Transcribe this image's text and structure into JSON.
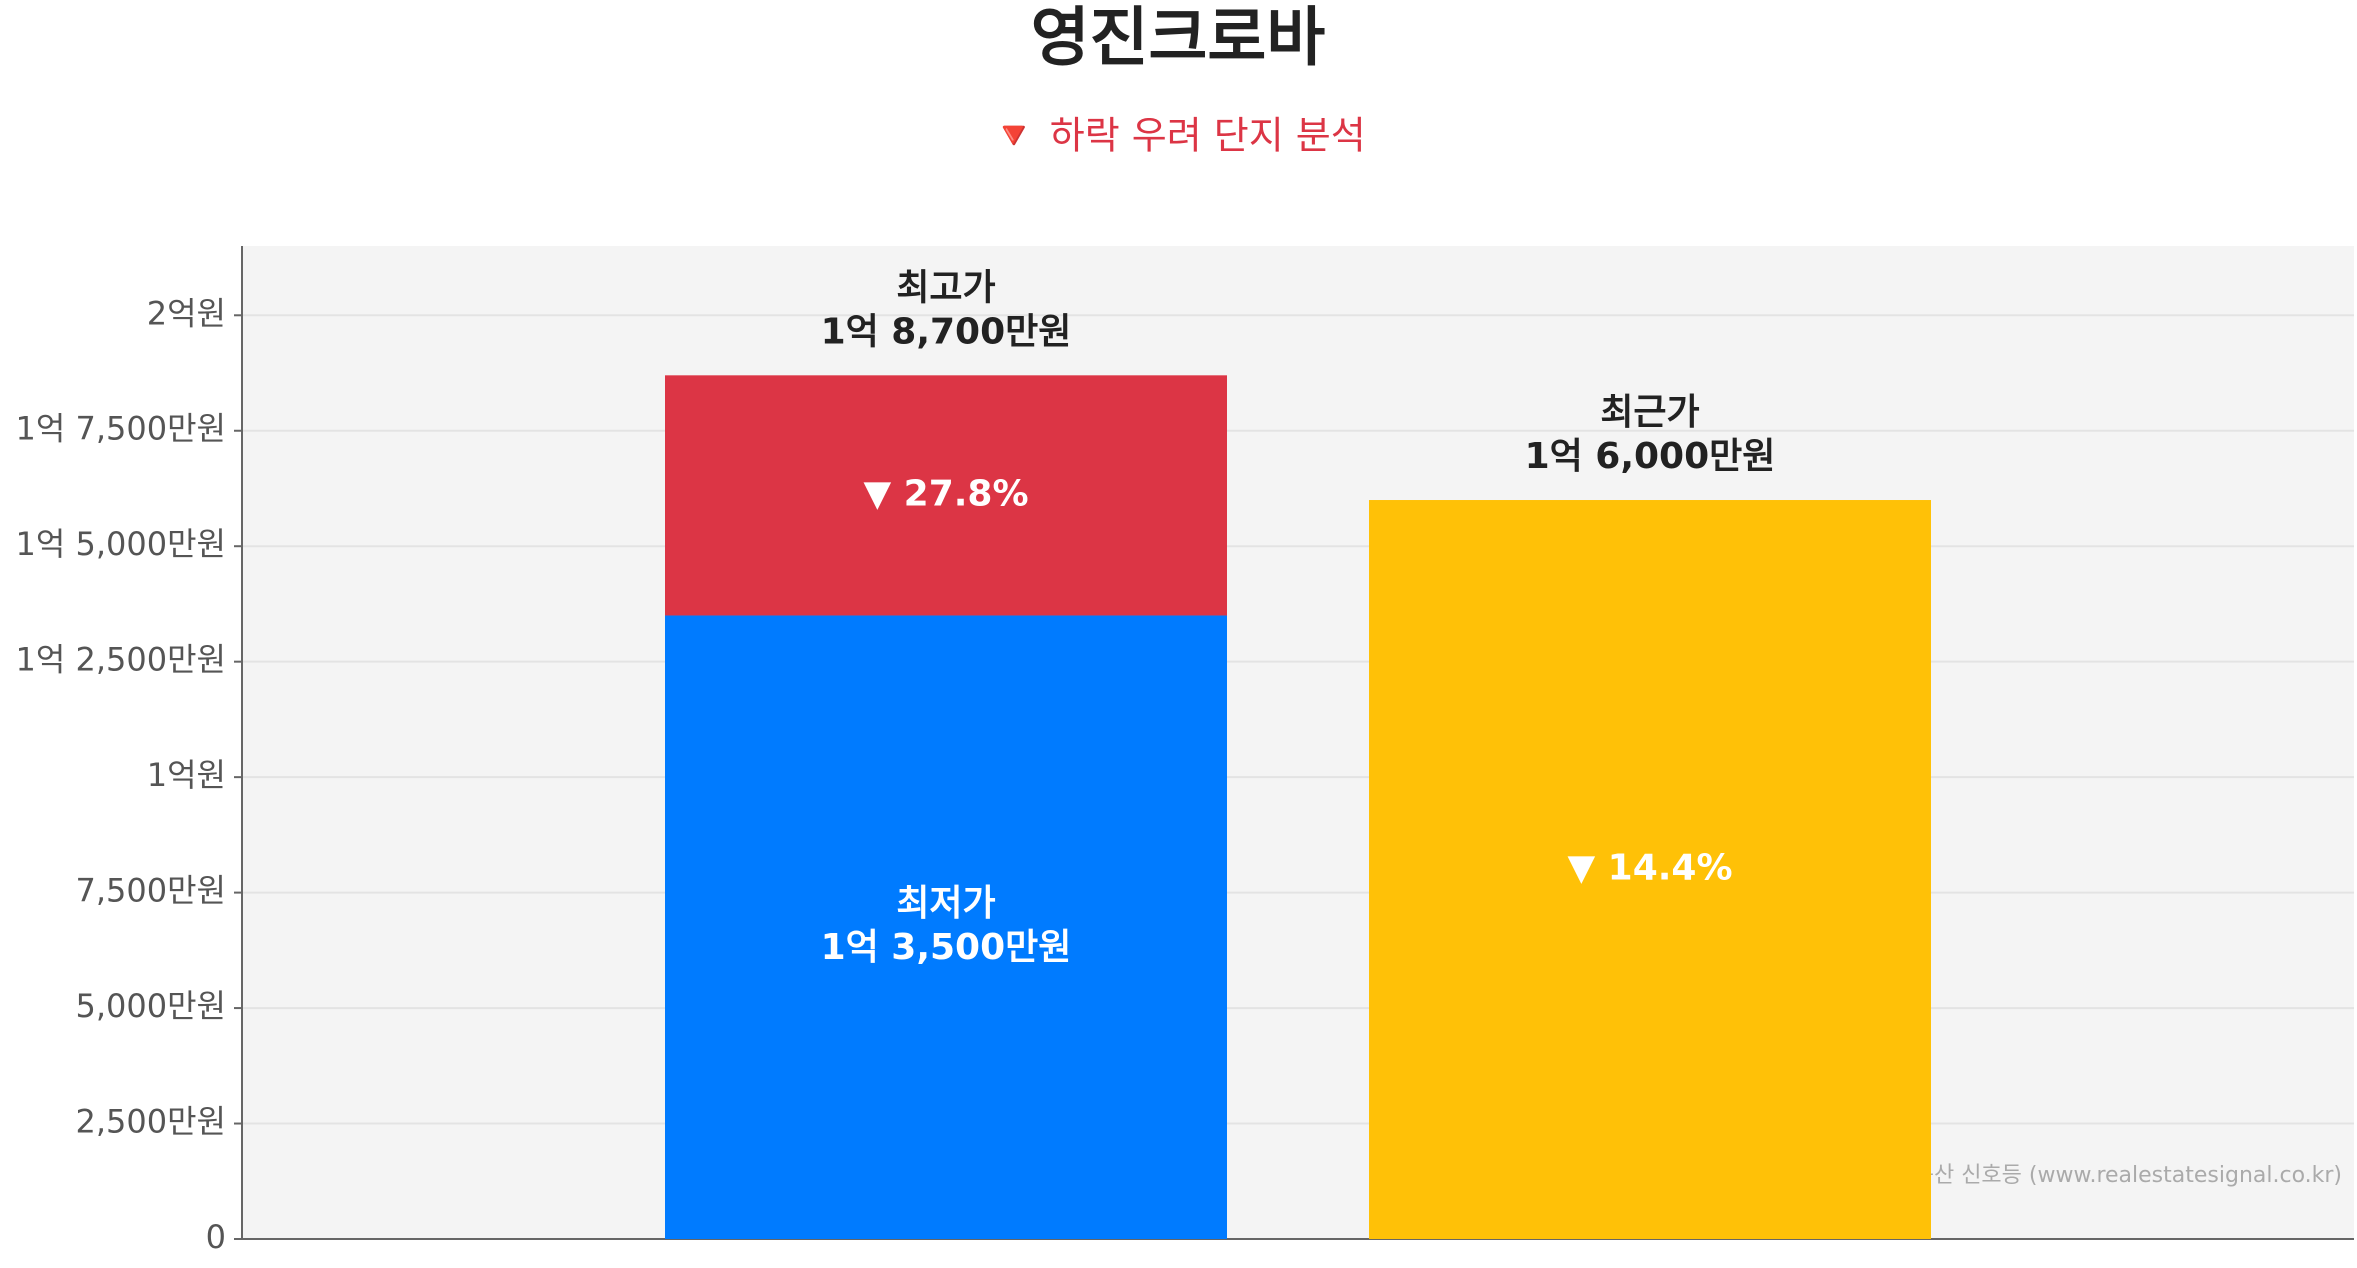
{
  "chart_data": {
    "type": "stacked-bar",
    "title": "영진크로바",
    "subtitle": "🔻 하락 우려 단지 분석",
    "source": "Source: 부동산 신호등 (www.realestatesignal.co.kr)",
    "ylim": [
      0,
      21500
    ],
    "yticks": [
      0,
      {
        "value": 2500,
        "label": "2,500만원"
      },
      {
        "value": 5000,
        "label": "5,000만원"
      },
      {
        "value": 7500,
        "label": "7,500만원"
      },
      {
        "value": 10000,
        "label": "1억원"
      },
      {
        "value": 12500,
        "label": "1억 2,500만원"
      },
      {
        "value": 15000,
        "label": "1억 5,000만원"
      },
      {
        "value": 17500,
        "label": "1억 7,500만원"
      },
      {
        "value": 20000,
        "label": "2억원"
      }
    ],
    "grid": true,
    "bars": [
      {
        "name": "최고가",
        "total": 18700,
        "total_label": "1억 8,700만원",
        "segments": [
          {
            "name": "최저가",
            "value": 13500,
            "value_label": "1억 3,500만원",
            "color": "#007bff"
          },
          {
            "value": 5200,
            "color": "#dc3545",
            "change_label": "▼ 27.8%"
          }
        ]
      },
      {
        "name": "최근가",
        "total": 16000,
        "total_label": "1억 6,000만원",
        "segments": [
          {
            "value": 16000,
            "color": "#ffc107",
            "change_label": "▼ 14.4%"
          }
        ]
      }
    ]
  }
}
